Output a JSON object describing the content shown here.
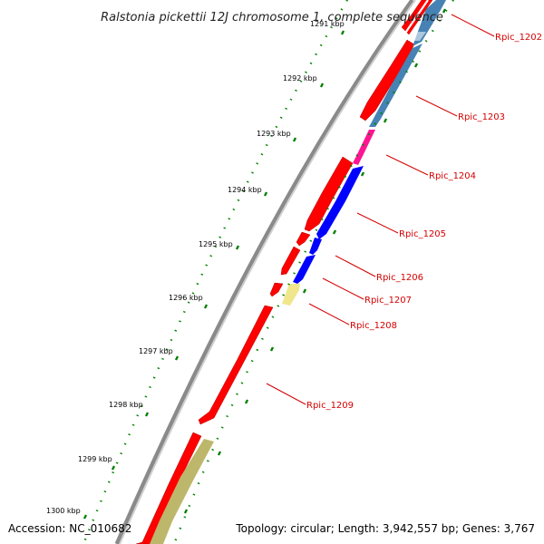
{
  "header": {
    "title": "Ralstonia pickettii 12J chromosome 1, complete sequence"
  },
  "footer": {
    "accession": "Accession: NC_010682",
    "summary": "Topology: circular; Length: 3,942,557 bp; Genes: 3,767"
  },
  "scale_labels": [
    "1291 kbp",
    "1292 kbp",
    "1293 kbp",
    "1294 kbp",
    "1295 kbp",
    "1296 kbp",
    "1297 kbp",
    "1298 kbp",
    "1299 kbp",
    "1300 kbp"
  ],
  "genes": [
    {
      "label": "Rpic_1202",
      "fwd_color": "#ff0000",
      "rev_color": "#4682b4"
    },
    {
      "label": "Rpic_1203",
      "fwd_color": "#ff0000",
      "rev_color": "#4682b4"
    },
    {
      "label": "Rpic_1204",
      "fwd_color": "#ff0000",
      "rev_color": "#ff1493"
    },
    {
      "label": "Rpic_1205",
      "fwd_color": "#ff0000",
      "rev_color": "#0000ff"
    },
    {
      "label": "Rpic_1206",
      "fwd_color": "#ff0000",
      "rev_color": "#0000ff"
    },
    {
      "label": "Rpic_1207",
      "fwd_color": "#ff0000",
      "rev_color": "#0000ff"
    },
    {
      "label": "Rpic_1208",
      "fwd_color": "#ff0000",
      "rev_color": "#f0e68c"
    },
    {
      "label": "Rpic_1209",
      "fwd_color": "#ff0000",
      "rev_color": "#bdb76b"
    }
  ],
  "colors": {
    "backbone": "#808080",
    "tick": "#008000",
    "label": "#d40000"
  }
}
